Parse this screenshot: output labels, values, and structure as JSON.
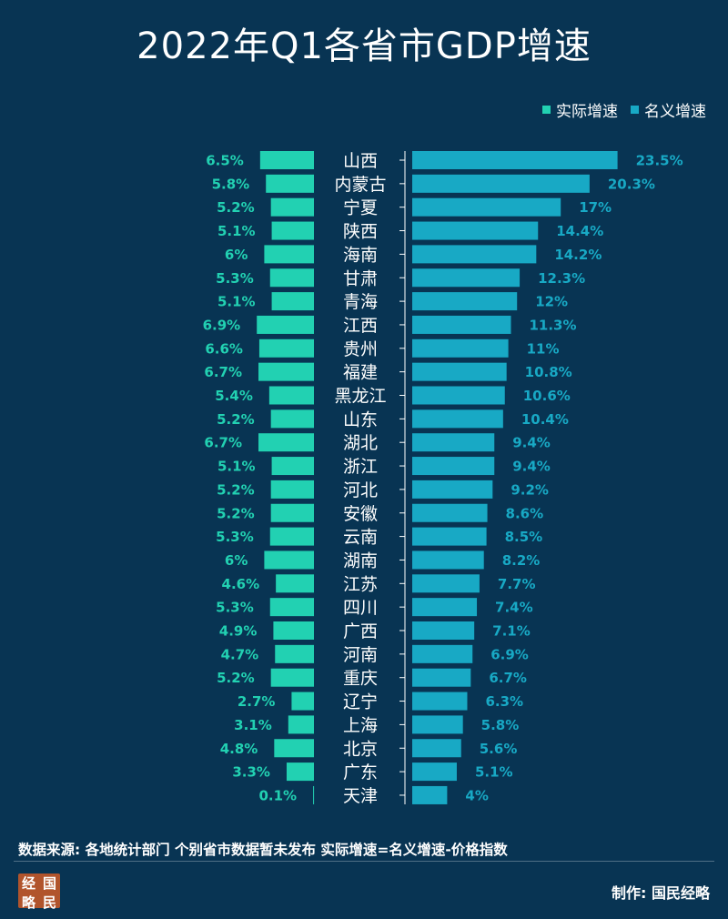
{
  "title": "2022年Q1各省市GDP增速",
  "legend": [
    {
      "label": "实际增速",
      "color": "#22d1b2"
    },
    {
      "label": "名义增速",
      "color": "#18a9c5"
    }
  ],
  "chart_data": {
    "type": "bar",
    "title": "2022年Q1各省市GDP增速",
    "categories": [
      "山西",
      "内蒙古",
      "宁夏",
      "陕西",
      "海南",
      "甘肃",
      "青海",
      "江西",
      "贵州",
      "福建",
      "黑龙江",
      "山东",
      "湖北",
      "浙江",
      "河北",
      "安徽",
      "云南",
      "湖南",
      "江苏",
      "四川",
      "广西",
      "河南",
      "重庆",
      "辽宁",
      "上海",
      "北京",
      "广东",
      "天津"
    ],
    "series": [
      {
        "name": "实际增速",
        "values": [
          6.5,
          5.8,
          5.2,
          5.1,
          6,
          5.3,
          5.1,
          6.9,
          6.6,
          6.7,
          5.4,
          5.2,
          6.7,
          5.1,
          5.2,
          5.2,
          5.3,
          6,
          4.6,
          5.3,
          4.9,
          4.7,
          5.2,
          2.7,
          3.1,
          4.8,
          3.3,
          0.1
        ]
      },
      {
        "name": "名义增速",
        "values": [
          23.5,
          20.3,
          17,
          14.4,
          14.2,
          12.3,
          12,
          11.3,
          11,
          10.8,
          10.6,
          10.4,
          9.4,
          9.4,
          9.2,
          8.6,
          8.5,
          8.2,
          7.7,
          7.4,
          7.1,
          6.9,
          6.7,
          6.3,
          5.8,
          5.6,
          5.1,
          4
        ]
      }
    ],
    "value_suffix": "%",
    "legend_position": "top-right"
  },
  "footer": {
    "note": "数据来源: 各地统计部门 个别省市数据暂未发布  实际增速=名义增速-价格指数",
    "maker": "制作: 国民经略",
    "logo_chars": [
      "经",
      "国",
      "略",
      "民"
    ]
  },
  "colors": {
    "background": "#083453",
    "real": "#22d1b2",
    "nominal": "#18a9c5",
    "axis": "#ffffff"
  }
}
